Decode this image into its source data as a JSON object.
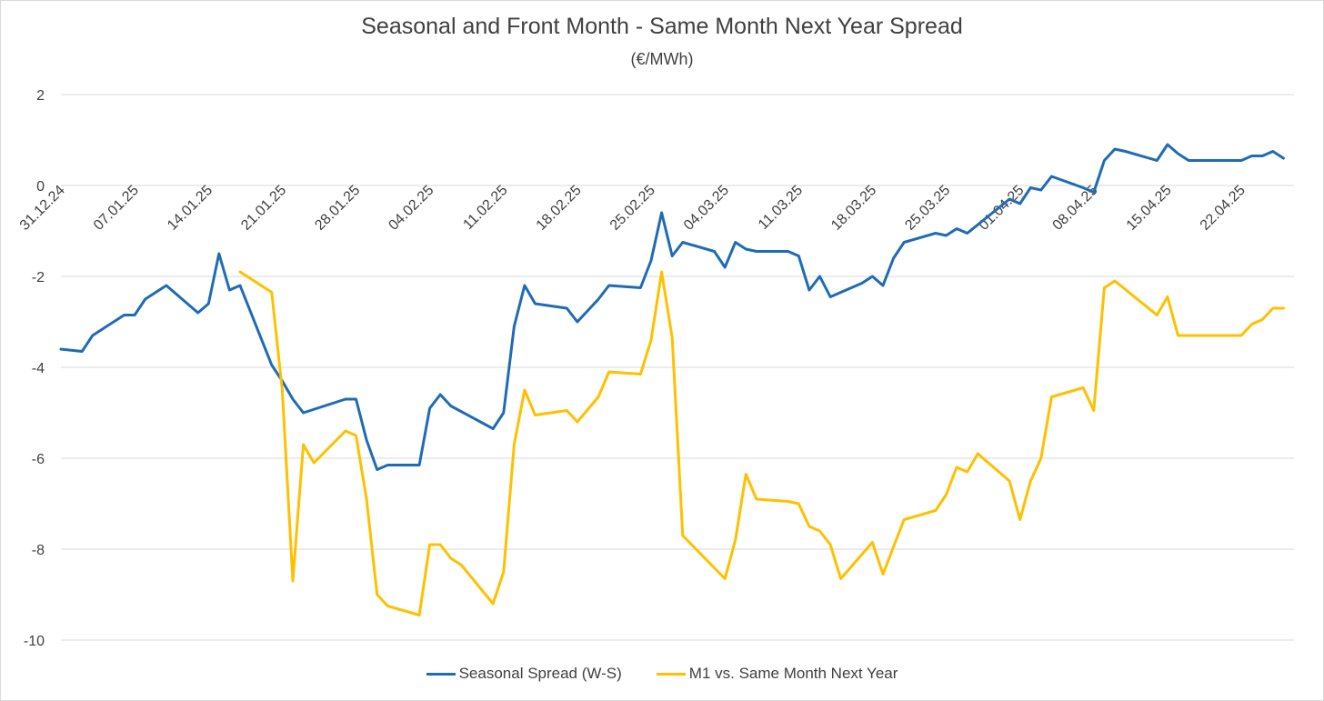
{
  "chart_data": {
    "type": "line",
    "title": "Seasonal and Front Month - Same Month Next Year Spread",
    "subtitle": "(€/MWh)",
    "ylim": [
      -10,
      2
    ],
    "yticks": [
      "2",
      "0",
      "-2",
      "-4",
      "-6",
      "-8",
      "-10"
    ],
    "grid": true,
    "legend_position": "bottom",
    "xlim": [
      "2024-12-31",
      "2025-04-27"
    ],
    "x_tick_labels": [
      "31.12.24",
      "07.01.25",
      "14.01.25",
      "21.01.25",
      "28.01.25",
      "04.02.25",
      "11.02.25",
      "18.02.25",
      "25.02.25",
      "04.03.25",
      "11.03.25",
      "18.03.25",
      "25.03.25",
      "01.04.25",
      "08.04.25",
      "15.04.25",
      "22.04.25"
    ],
    "x_tick_dates": [
      "2024-12-31",
      "2025-01-07",
      "2025-01-14",
      "2025-01-21",
      "2025-01-28",
      "2025-02-04",
      "2025-02-11",
      "2025-02-18",
      "2025-02-25",
      "2025-03-04",
      "2025-03-11",
      "2025-03-18",
      "2025-03-25",
      "2025-04-01",
      "2025-04-08",
      "2025-04-15",
      "2025-04-22"
    ],
    "series": [
      {
        "name": "Seasonal Spread (W-S)",
        "color": "#1f6bb5",
        "points": [
          [
            "2024-12-31",
            -3.6
          ],
          [
            "2025-01-02",
            -3.65
          ],
          [
            "2025-01-03",
            -3.3
          ],
          [
            "2025-01-06",
            -2.85
          ],
          [
            "2025-01-07",
            -2.85
          ],
          [
            "2025-01-08",
            -2.5
          ],
          [
            "2025-01-10",
            -2.2
          ],
          [
            "2025-01-13",
            -2.8
          ],
          [
            "2025-01-14",
            -2.6
          ],
          [
            "2025-01-15",
            -1.5
          ],
          [
            "2025-01-16",
            -2.3
          ],
          [
            "2025-01-17",
            -2.2
          ],
          [
            "2025-01-20",
            -3.95
          ],
          [
            "2025-01-21",
            -4.3
          ],
          [
            "2025-01-22",
            -4.7
          ],
          [
            "2025-01-23",
            -5.0
          ],
          [
            "2025-01-27",
            -4.7
          ],
          [
            "2025-01-28",
            -4.7
          ],
          [
            "2025-01-29",
            -5.6
          ],
          [
            "2025-01-30",
            -6.25
          ],
          [
            "2025-01-31",
            -6.15
          ],
          [
            "2025-02-03",
            -6.15
          ],
          [
            "2025-02-04",
            -4.9
          ],
          [
            "2025-02-05",
            -4.6
          ],
          [
            "2025-02-06",
            -4.85
          ],
          [
            "2025-02-10",
            -5.35
          ],
          [
            "2025-02-11",
            -5.0
          ],
          [
            "2025-02-12",
            -3.1
          ],
          [
            "2025-02-13",
            -2.2
          ],
          [
            "2025-02-14",
            -2.6
          ],
          [
            "2025-02-17",
            -2.7
          ],
          [
            "2025-02-18",
            -3.0
          ],
          [
            "2025-02-19",
            -2.75
          ],
          [
            "2025-02-20",
            -2.5
          ],
          [
            "2025-02-21",
            -2.2
          ],
          [
            "2025-02-24",
            -2.25
          ],
          [
            "2025-02-25",
            -1.65
          ],
          [
            "2025-02-26",
            -0.6
          ],
          [
            "2025-02-27",
            -1.55
          ],
          [
            "2025-02-28",
            -1.25
          ],
          [
            "2025-03-03",
            -1.45
          ],
          [
            "2025-03-04",
            -1.8
          ],
          [
            "2025-03-05",
            -1.25
          ],
          [
            "2025-03-06",
            -1.4
          ],
          [
            "2025-03-07",
            -1.45
          ],
          [
            "2025-03-10",
            -1.45
          ],
          [
            "2025-03-11",
            -1.55
          ],
          [
            "2025-03-12",
            -2.3
          ],
          [
            "2025-03-13",
            -2.0
          ],
          [
            "2025-03-14",
            -2.45
          ],
          [
            "2025-03-17",
            -2.15
          ],
          [
            "2025-03-18",
            -2.0
          ],
          [
            "2025-03-19",
            -2.2
          ],
          [
            "2025-03-20",
            -1.6
          ],
          [
            "2025-03-21",
            -1.25
          ],
          [
            "2025-03-24",
            -1.05
          ],
          [
            "2025-03-25",
            -1.1
          ],
          [
            "2025-03-26",
            -0.95
          ],
          [
            "2025-03-27",
            -1.05
          ],
          [
            "2025-03-31",
            -0.3
          ],
          [
            "2025-04-01",
            -0.4
          ],
          [
            "2025-04-02",
            -0.05
          ],
          [
            "2025-04-03",
            -0.1
          ],
          [
            "2025-04-04",
            0.2
          ],
          [
            "2025-04-07",
            -0.05
          ],
          [
            "2025-04-08",
            -0.15
          ],
          [
            "2025-04-09",
            0.55
          ],
          [
            "2025-04-10",
            0.8
          ],
          [
            "2025-04-11",
            0.75
          ],
          [
            "2025-04-14",
            0.55
          ],
          [
            "2025-04-15",
            0.9
          ],
          [
            "2025-04-16",
            0.7
          ],
          [
            "2025-04-17",
            0.55
          ],
          [
            "2025-04-22",
            0.55
          ],
          [
            "2025-04-23",
            0.65
          ],
          [
            "2025-04-24",
            0.65
          ],
          [
            "2025-04-25",
            0.75
          ],
          [
            "2025-04-26",
            0.6
          ]
        ]
      },
      {
        "name": "M1 vs. Same Month Next Year",
        "color": "#ffc000",
        "points": [
          [
            "2025-01-17",
            -1.9
          ],
          [
            "2025-01-20",
            -2.35
          ],
          [
            "2025-01-21",
            -4.5
          ],
          [
            "2025-01-22",
            -8.7
          ],
          [
            "2025-01-23",
            -5.7
          ],
          [
            "2025-01-24",
            -6.1
          ],
          [
            "2025-01-27",
            -5.4
          ],
          [
            "2025-01-28",
            -5.5
          ],
          [
            "2025-01-29",
            -6.9
          ],
          [
            "2025-01-30",
            -9.0
          ],
          [
            "2025-01-31",
            -9.25
          ],
          [
            "2025-02-03",
            -9.45
          ],
          [
            "2025-02-04",
            -7.9
          ],
          [
            "2025-02-05",
            -7.9
          ],
          [
            "2025-02-06",
            -8.2
          ],
          [
            "2025-02-07",
            -8.35
          ],
          [
            "2025-02-10",
            -9.2
          ],
          [
            "2025-02-11",
            -8.5
          ],
          [
            "2025-02-12",
            -5.7
          ],
          [
            "2025-02-13",
            -4.5
          ],
          [
            "2025-02-14",
            -5.05
          ],
          [
            "2025-02-17",
            -4.95
          ],
          [
            "2025-02-18",
            -5.2
          ],
          [
            "2025-02-20",
            -4.65
          ],
          [
            "2025-02-21",
            -4.1
          ],
          [
            "2025-02-24",
            -4.15
          ],
          [
            "2025-02-25",
            -3.4
          ],
          [
            "2025-02-26",
            -1.9
          ],
          [
            "2025-02-27",
            -3.35
          ],
          [
            "2025-02-28",
            -7.7
          ],
          [
            "2025-03-04",
            -8.65
          ],
          [
            "2025-03-05",
            -7.8
          ],
          [
            "2025-03-06",
            -6.35
          ],
          [
            "2025-03-07",
            -6.9
          ],
          [
            "2025-03-10",
            -6.95
          ],
          [
            "2025-03-11",
            -7.0
          ],
          [
            "2025-03-12",
            -7.5
          ],
          [
            "2025-03-13",
            -7.6
          ],
          [
            "2025-03-14",
            -7.9
          ],
          [
            "2025-03-15",
            -8.65
          ],
          [
            "2025-03-18",
            -7.85
          ],
          [
            "2025-03-19",
            -8.55
          ],
          [
            "2025-03-21",
            -7.35
          ],
          [
            "2025-03-24",
            -7.15
          ],
          [
            "2025-03-25",
            -6.8
          ],
          [
            "2025-03-26",
            -6.2
          ],
          [
            "2025-03-27",
            -6.3
          ],
          [
            "2025-03-28",
            -5.9
          ],
          [
            "2025-03-31",
            -6.5
          ],
          [
            "2025-04-01",
            -7.35
          ],
          [
            "2025-04-02",
            -6.5
          ],
          [
            "2025-04-03",
            -6.0
          ],
          [
            "2025-04-04",
            -4.65
          ],
          [
            "2025-04-07",
            -4.45
          ],
          [
            "2025-04-08",
            -4.95
          ],
          [
            "2025-04-09",
            -2.25
          ],
          [
            "2025-04-10",
            -2.1
          ],
          [
            "2025-04-14",
            -2.85
          ],
          [
            "2025-04-15",
            -2.45
          ],
          [
            "2025-04-16",
            -3.3
          ],
          [
            "2025-04-17",
            -3.3
          ],
          [
            "2025-04-22",
            -3.3
          ],
          [
            "2025-04-23",
            -3.05
          ],
          [
            "2025-04-24",
            -2.95
          ],
          [
            "2025-04-25",
            -2.7
          ],
          [
            "2025-04-26",
            -2.7
          ]
        ]
      }
    ]
  }
}
